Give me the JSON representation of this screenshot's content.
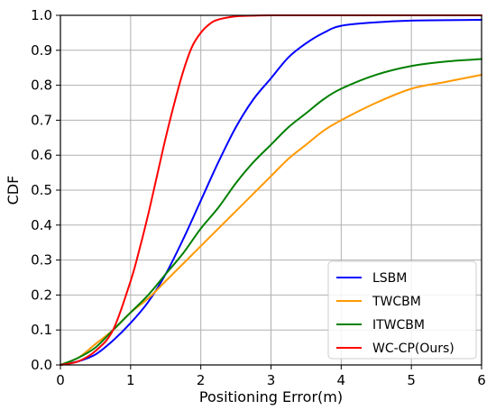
{
  "chart_data": {
    "type": "line",
    "title": "",
    "xlabel": "Positioning Error(m)",
    "ylabel": "CDF",
    "xlim": [
      0,
      6
    ],
    "ylim": [
      0,
      1.0
    ],
    "xticks": [
      "0",
      "1",
      "2",
      "3",
      "4",
      "5",
      "6"
    ],
    "yticks": [
      "0.0",
      "0.1",
      "0.2",
      "0.3",
      "0.4",
      "0.5",
      "0.6",
      "0.7",
      "0.8",
      "0.9",
      "1.0"
    ],
    "grid": true,
    "legend_position": "bottom-right",
    "series": [
      {
        "name": "LSBM",
        "color": "#0000ff",
        "x": [
          0,
          0.25,
          0.5,
          0.75,
          1.0,
          1.25,
          1.5,
          1.75,
          2.0,
          2.25,
          2.5,
          2.75,
          3.0,
          3.25,
          3.5,
          3.75,
          4.0,
          4.5,
          5.0,
          5.5,
          6.0
        ],
        "y": [
          0,
          0.01,
          0.03,
          0.07,
          0.12,
          0.18,
          0.26,
          0.36,
          0.47,
          0.58,
          0.68,
          0.76,
          0.82,
          0.88,
          0.92,
          0.95,
          0.97,
          0.98,
          0.985,
          0.986,
          0.987
        ]
      },
      {
        "name": "TWCBM",
        "color": "#ff9900",
        "x": [
          0,
          0.25,
          0.5,
          0.75,
          1.0,
          1.25,
          1.5,
          1.75,
          2.0,
          2.25,
          2.5,
          2.75,
          3.0,
          3.25,
          3.5,
          3.75,
          4.0,
          4.5,
          5.0,
          5.5,
          6.0
        ],
        "y": [
          0,
          0.02,
          0.06,
          0.1,
          0.15,
          0.19,
          0.24,
          0.29,
          0.34,
          0.39,
          0.44,
          0.49,
          0.54,
          0.59,
          0.63,
          0.67,
          0.7,
          0.75,
          0.79,
          0.81,
          0.83
        ]
      },
      {
        "name": "ITWCBM",
        "color": "#008000",
        "x": [
          0,
          0.25,
          0.5,
          0.75,
          1.0,
          1.25,
          1.5,
          1.75,
          2.0,
          2.25,
          2.5,
          2.75,
          3.0,
          3.25,
          3.5,
          3.75,
          4.0,
          4.5,
          5.0,
          5.5,
          6.0
        ],
        "y": [
          0,
          0.02,
          0.05,
          0.1,
          0.15,
          0.2,
          0.26,
          0.32,
          0.39,
          0.45,
          0.52,
          0.58,
          0.63,
          0.68,
          0.72,
          0.76,
          0.79,
          0.83,
          0.855,
          0.868,
          0.875
        ]
      },
      {
        "name": "WC-CP(Ours)",
        "color": "#ff0000",
        "x": [
          0,
          0.25,
          0.5,
          0.75,
          1.0,
          1.125,
          1.25,
          1.375,
          1.5,
          1.625,
          1.75,
          1.875,
          2.0,
          2.125,
          2.25,
          2.5,
          2.75,
          3.0,
          4.0,
          5.0,
          6.0
        ],
        "y": [
          0,
          0.01,
          0.04,
          0.1,
          0.24,
          0.33,
          0.43,
          0.54,
          0.65,
          0.75,
          0.84,
          0.91,
          0.95,
          0.975,
          0.988,
          0.997,
          0.999,
          1.0,
          1.0,
          1.0,
          1.0
        ]
      }
    ]
  }
}
